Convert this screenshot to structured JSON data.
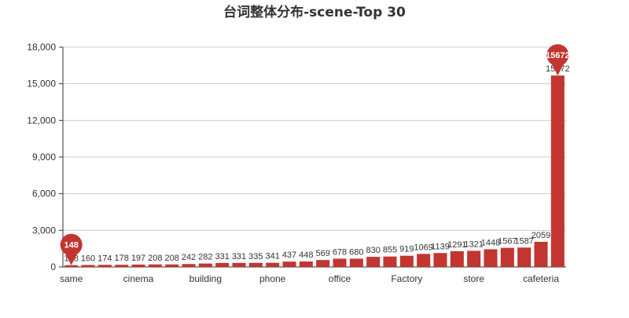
{
  "chart_data": {
    "type": "bar",
    "title": "台词整体分布-scene-Top 30",
    "xlabel": "",
    "ylabel": "",
    "ylim": [
      0,
      18000
    ],
    "yticks": [
      "0",
      "3,000",
      "6,000",
      "9,000",
      "12,000",
      "15,000",
      "18,000"
    ],
    "grid": true,
    "legend": "none",
    "color": "#c23531",
    "categories": [
      "same",
      "",
      "",
      "",
      "cinema",
      "",
      "",
      "",
      "building",
      "",
      "",
      "",
      "phone",
      "",
      "",
      "",
      "office",
      "",
      "",
      "",
      "Factory",
      "",
      "",
      "",
      "store",
      "",
      "",
      "",
      "cafeteria",
      ""
    ],
    "values": [
      148,
      160,
      174,
      178,
      197,
      208,
      208,
      242,
      282,
      331,
      331,
      335,
      341,
      437,
      448,
      569,
      678,
      680,
      830,
      855,
      919,
      1069,
      1139,
      1291,
      1321,
      1448,
      1567,
      1587,
      2059,
      15672
    ],
    "data_labels": [
      "148",
      "160",
      "174",
      "178",
      "197",
      "208",
      "208",
      "242",
      "282",
      "331",
      "331",
      "335",
      "341",
      "437",
      "448",
      "569",
      "678",
      "680",
      "830",
      "855",
      "919",
      "1069",
      "1139",
      "1291",
      "1321",
      "1448",
      "1567",
      "1587",
      "2059",
      "15672"
    ],
    "markers": [
      {
        "type": "min",
        "index": 0,
        "label": "148"
      },
      {
        "type": "max",
        "index": 29,
        "label": "15672"
      }
    ]
  }
}
